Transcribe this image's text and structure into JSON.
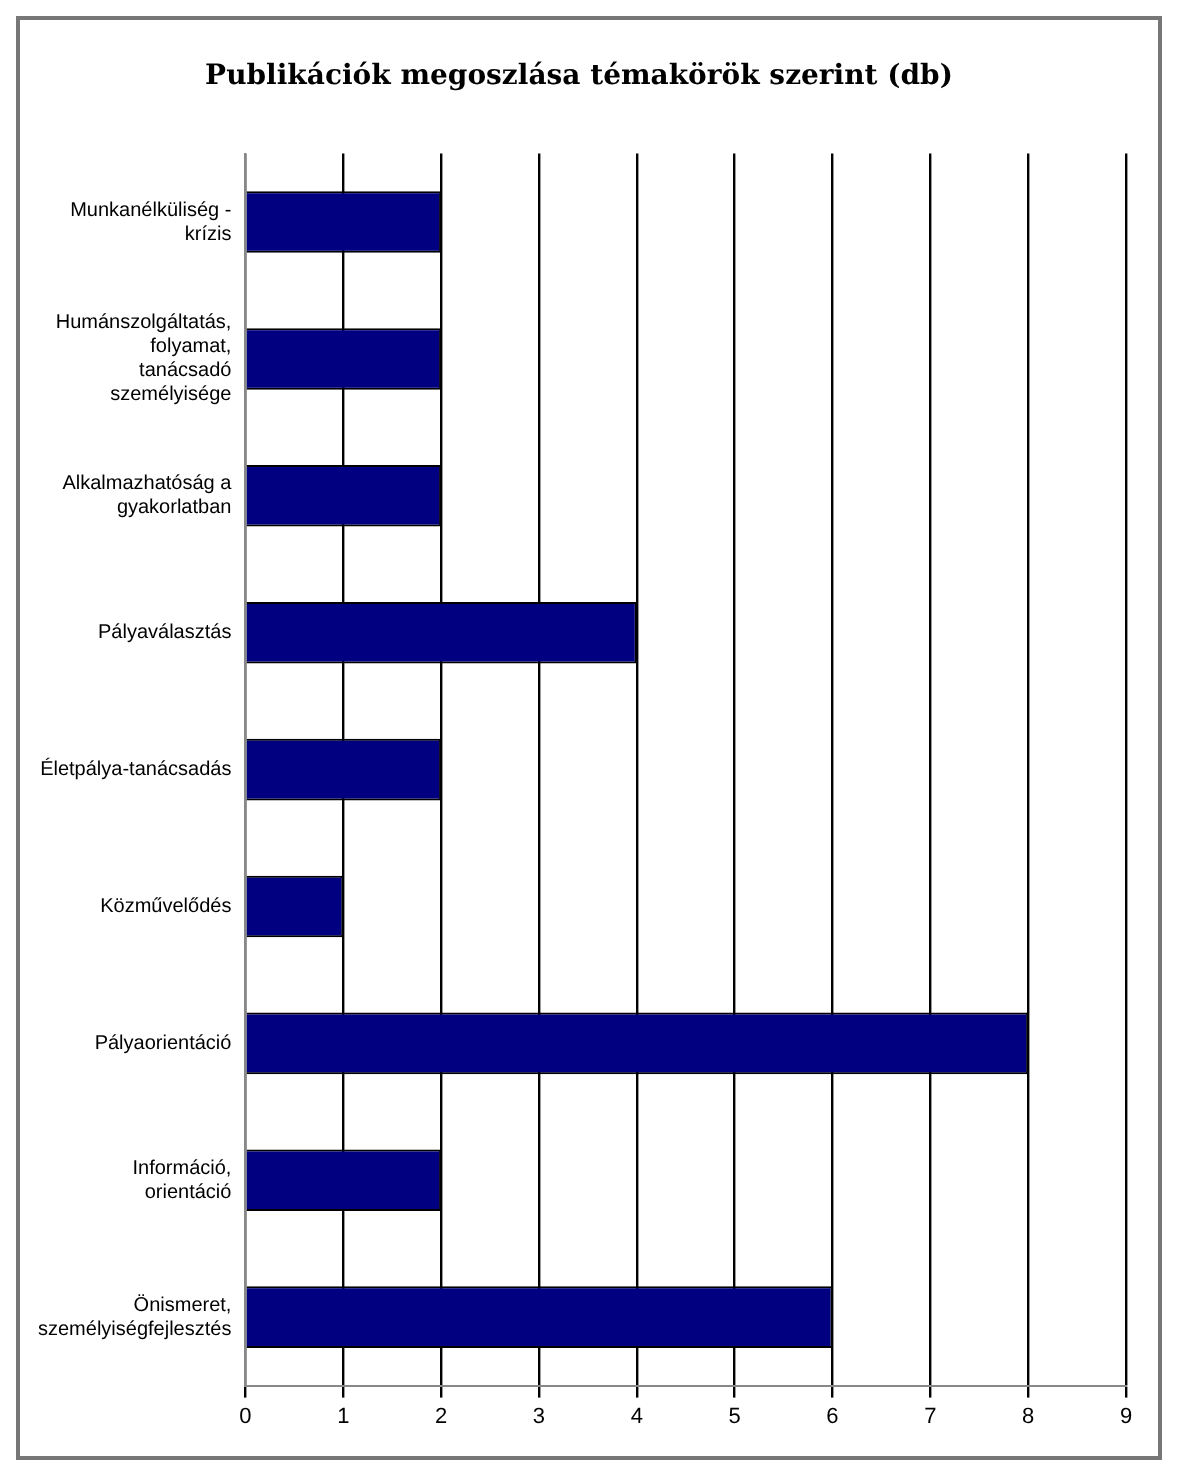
{
  "chart_data": {
    "type": "bar",
    "orientation": "horizontal",
    "title": "Publikációk megoszlása témakörök szerint (db)",
    "categories": [
      "Munkanélküliség - krízis",
      "Humánszolgáltatás, folyamat, tanácsadó személyisége",
      "Alkalmazhatóság a gyakorlatban",
      "Pályaválasztás",
      "Életpálya-tanácsadás",
      "Közművelődés",
      "Pályaorientáció",
      "Információ, orientáció",
      "Önismeret, személyiségfejlesztés"
    ],
    "values": [
      2,
      2,
      2,
      4,
      2,
      1,
      8,
      2,
      6
    ],
    "color": "#000080",
    "xlim": [
      0,
      9
    ],
    "xticks": [
      0,
      1,
      2,
      3,
      4,
      5,
      6,
      7,
      8,
      9
    ],
    "grid": "x",
    "legend": false
  }
}
